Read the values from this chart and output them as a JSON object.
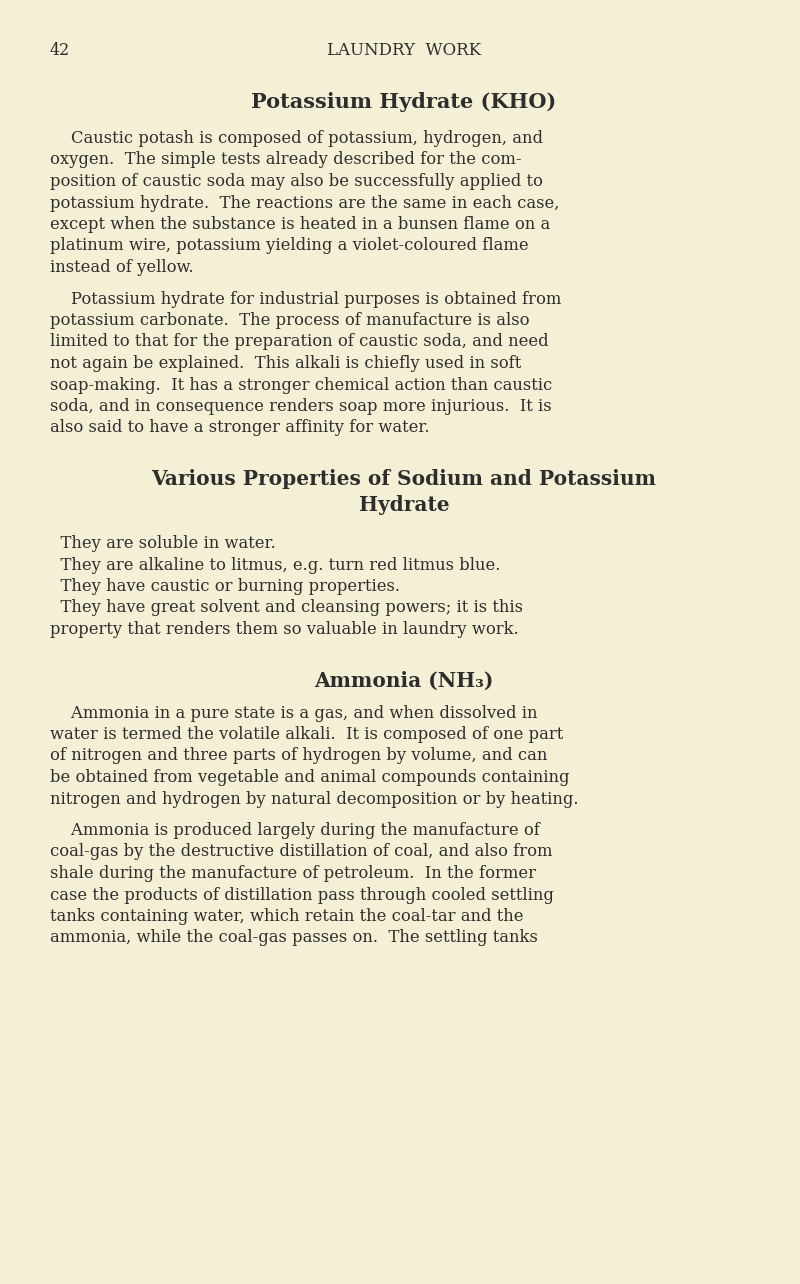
{
  "background_color": "#f5f0d5",
  "text_color": "#2d2d2d",
  "page_number": "42",
  "header": "LAUNDRY  WORK",
  "title1": "Potassium Hydrate (KHO)",
  "p1_lines": [
    "    Caustic potash is composed of potassium, hydrogen, and",
    "oxygen.  The simple tests already described for the com-",
    "position of caustic soda may also be successfully applied to",
    "potassium hydrate.  The reactions are the same in each case,",
    "except when the substance is heated in a bunsen flame on a",
    "platinum wire, potassium yielding a violet-coloured flame",
    "instead of yellow."
  ],
  "p2_lines": [
    "    Potassium hydrate for industrial purposes is obtained from",
    "potassium carbonate.  The process of manufacture is also",
    "limited to that for the preparation of caustic soda, and need",
    "not again be explained.  This alkali is chiefly used in soft",
    "soap-making.  It has a stronger chemical action than caustic",
    "soda, and in consequence renders soap more injurious.  It is",
    "also said to have a stronger affinity for water."
  ],
  "title2_line1": "Various Properties of Sodium and Potassium",
  "title2_line2": "Hydrate",
  "bullet_lines": [
    "  They are soluble in water.",
    "  They are alkaline to litmus, e.g. turn red litmus blue.",
    "  They have caustic or burning properties.",
    "  They have great solvent and cleansing powers; it is this",
    "property that renders them so valuable in laundry work."
  ],
  "title3": "Ammonia (NH₃)",
  "p3_lines": [
    "    Ammonia in a pure state is a gas, and when dissolved in",
    "water is termed the volatile alkali.  It is composed of one part",
    "of nitrogen and three parts of hydrogen by volume, and can",
    "be obtained from vegetable and animal compounds containing",
    "nitrogen and hydrogen by natural decomposition or by heating."
  ],
  "p4_lines": [
    "    Ammonia is produced largely during the manufacture of",
    "coal-gas by the destructive distillation of coal, and also from",
    "shale during the manufacture of petroleum.  In the former",
    "case the products of distillation pass through cooled settling",
    "tanks containing water, which retain the coal-tar and the",
    "ammonia, while the coal-gas passes on.  The settling tanks"
  ]
}
